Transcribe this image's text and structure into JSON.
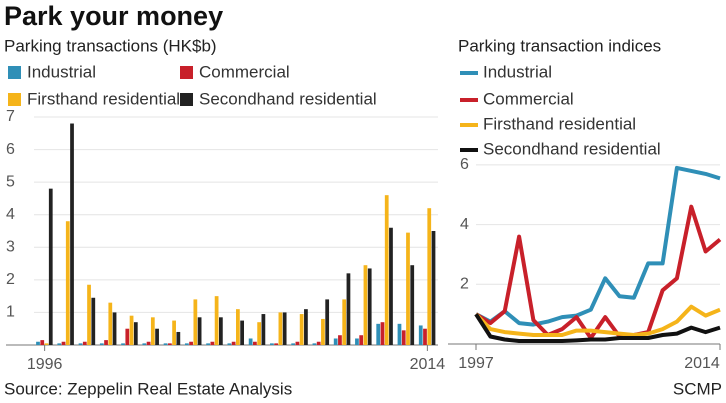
{
  "title": "Park your money",
  "source": "Source: Zeppelin Real Estate Analysis",
  "credit": "SCMP",
  "chart_data": [
    {
      "type": "bar",
      "title": "Parking transactions (HK$b)",
      "categories": [
        "1996",
        null,
        null,
        null,
        null,
        null,
        null,
        null,
        null,
        null,
        null,
        null,
        null,
        null,
        null,
        null,
        null,
        null,
        "2014"
      ],
      "series": [
        {
          "name": "Industrial",
          "color": "#2f8fb7",
          "values": [
            0.1,
            0.05,
            0.05,
            0.05,
            0.05,
            0.05,
            0.05,
            0.05,
            0.05,
            0.05,
            0.2,
            0.05,
            0.05,
            0.05,
            0.2,
            0.2,
            0.65,
            0.65,
            0.6
          ]
        },
        {
          "name": "Commercial",
          "color": "#c8202a",
          "values": [
            0.15,
            0.1,
            0.1,
            0.15,
            0.5,
            0.1,
            0.05,
            0.1,
            0.1,
            0.1,
            0.1,
            0.05,
            0.1,
            0.1,
            0.3,
            0.3,
            0.7,
            0.45,
            0.5
          ]
        },
        {
          "name": "Firsthand residential",
          "color": "#f5b41a",
          "values": [
            0.05,
            3.8,
            1.85,
            1.3,
            0.9,
            0.85,
            0.75,
            1.4,
            1.5,
            1.1,
            0.7,
            1.0,
            0.95,
            0.8,
            1.4,
            2.45,
            4.6,
            3.45,
            4.2
          ]
        },
        {
          "name": "Secondhand residential",
          "color": "#222222",
          "values": [
            4.8,
            6.8,
            1.45,
            1.0,
            0.7,
            0.5,
            0.4,
            0.85,
            0.85,
            0.75,
            0.95,
            1.0,
            1.1,
            1.4,
            2.2,
            2.35,
            3.6,
            2.45,
            3.5
          ]
        }
      ],
      "ylim": [
        0,
        7
      ],
      "yticks": [
        1,
        2,
        3,
        4,
        5,
        6,
        7
      ],
      "grid": true
    },
    {
      "type": "line",
      "title": "Parking transaction indices",
      "categories": [
        "1997",
        null,
        null,
        null,
        null,
        null,
        null,
        null,
        null,
        null,
        null,
        null,
        null,
        null,
        null,
        null,
        null,
        "2014"
      ],
      "series": [
        {
          "name": "Industrial",
          "color": "#2f8fb7",
          "values": [
            1,
            0.75,
            1.1,
            0.7,
            0.65,
            0.75,
            0.9,
            0.95,
            1.15,
            2.2,
            1.6,
            1.55,
            2.7,
            2.7,
            5.9,
            5.8,
            5.7,
            5.55
          ]
        },
        {
          "name": "Commercial",
          "color": "#c8202a",
          "values": [
            1,
            0.7,
            1.1,
            3.6,
            0.8,
            0.3,
            0.5,
            0.9,
            0.2,
            0.9,
            0.25,
            0.3,
            0.4,
            1.8,
            2.2,
            4.6,
            3.1,
            3.5
          ]
        },
        {
          "name": "Firsthand residential",
          "color": "#f5b41a",
          "values": [
            1,
            0.5,
            0.4,
            0.35,
            0.3,
            0.3,
            0.3,
            0.45,
            0.45,
            0.4,
            0.35,
            0.3,
            0.35,
            0.5,
            0.75,
            1.25,
            0.95,
            1.15
          ]
        },
        {
          "name": "Secondhand residential",
          "color": "#111111",
          "values": [
            1,
            0.25,
            0.15,
            0.1,
            0.1,
            0.1,
            0.1,
            0.12,
            0.15,
            0.15,
            0.2,
            0.2,
            0.2,
            0.3,
            0.35,
            0.55,
            0.4,
            0.55
          ]
        }
      ],
      "ylim": [
        0,
        6.5
      ],
      "yticks": [
        2,
        4,
        6
      ],
      "grid": true
    }
  ]
}
